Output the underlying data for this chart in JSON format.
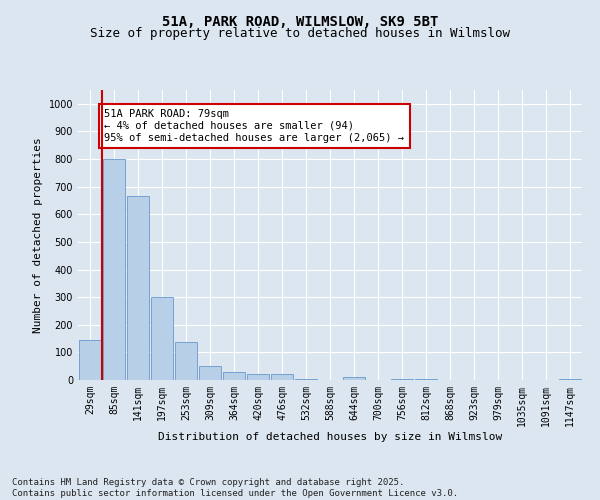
{
  "title1": "51A, PARK ROAD, WILMSLOW, SK9 5BT",
  "title2": "Size of property relative to detached houses in Wilmslow",
  "xlabel": "Distribution of detached houses by size in Wilmslow",
  "ylabel": "Number of detached properties",
  "bin_labels": [
    "29sqm",
    "85sqm",
    "141sqm",
    "197sqm",
    "253sqm",
    "309sqm",
    "364sqm",
    "420sqm",
    "476sqm",
    "532sqm",
    "588sqm",
    "644sqm",
    "700sqm",
    "756sqm",
    "812sqm",
    "868sqm",
    "923sqm",
    "979sqm",
    "1035sqm",
    "1091sqm",
    "1147sqm"
  ],
  "bar_values": [
    145,
    800,
    665,
    300,
    137,
    52,
    30,
    22,
    20,
    5,
    0,
    10,
    0,
    5,
    5,
    0,
    0,
    0,
    0,
    0,
    5
  ],
  "bar_color": "#b8cfe8",
  "bar_edge_color": "#6699cc",
  "vline_color": "#cc0000",
  "annotation_text": "51A PARK ROAD: 79sqm\n← 4% of detached houses are smaller (94)\n95% of semi-detached houses are larger (2,065) →",
  "annotation_box_color": "#ffffff",
  "annotation_box_edge": "#cc0000",
  "ylim": [
    0,
    1050
  ],
  "yticks": [
    0,
    100,
    200,
    300,
    400,
    500,
    600,
    700,
    800,
    900,
    1000
  ],
  "bg_color": "#dce6f0",
  "plot_bg_color": "#dce6f0",
  "footer_text": "Contains HM Land Registry data © Crown copyright and database right 2025.\nContains public sector information licensed under the Open Government Licence v3.0.",
  "title_fontsize": 10,
  "subtitle_fontsize": 9,
  "axis_label_fontsize": 8,
  "tick_fontsize": 7,
  "annotation_fontsize": 7.5,
  "footer_fontsize": 6.5
}
